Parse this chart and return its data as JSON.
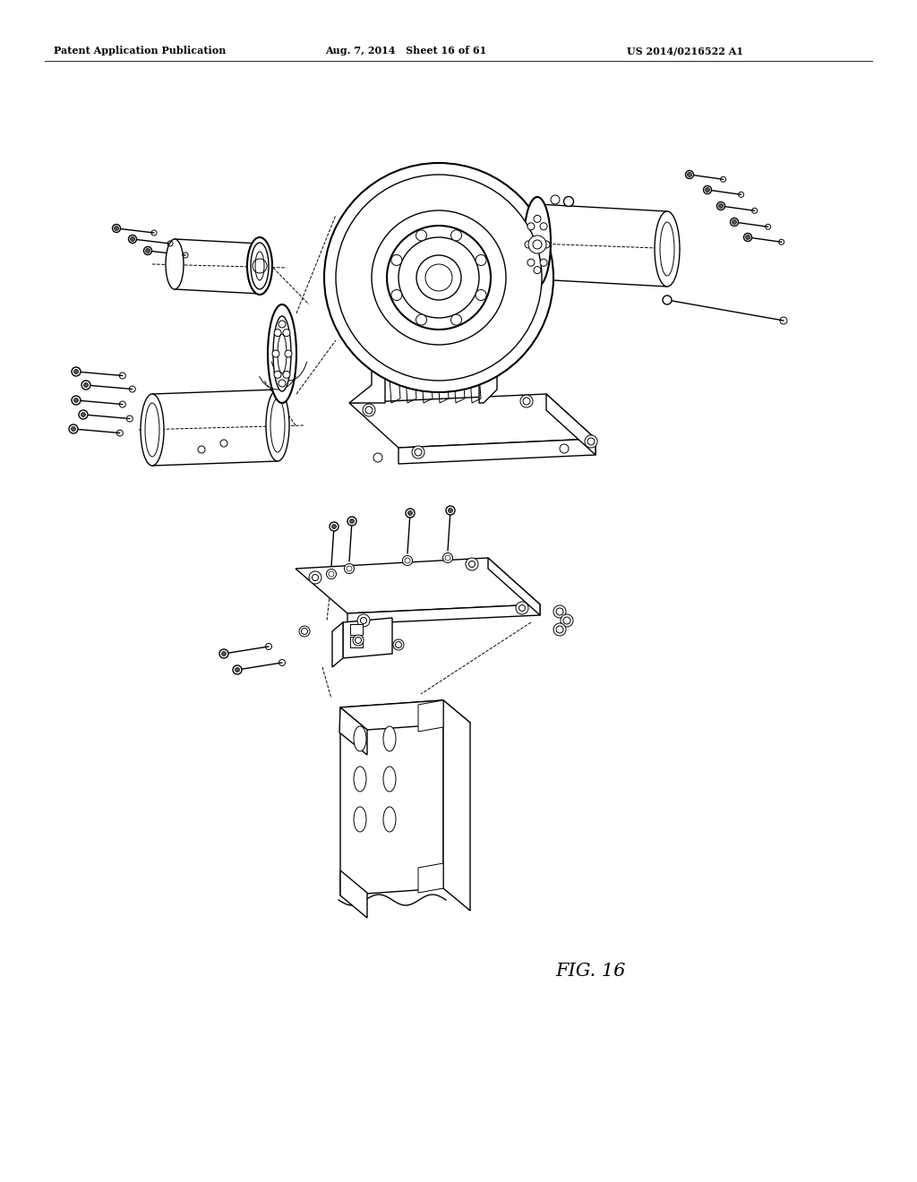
{
  "background_color": "#ffffff",
  "line_color": "#000000",
  "header_left": "Patent Application Publication",
  "header_center": "Aug. 7, 2014   Sheet 16 of 61",
  "header_right": "US 2014/0216522 A1",
  "figure_label": "FIG. 16"
}
